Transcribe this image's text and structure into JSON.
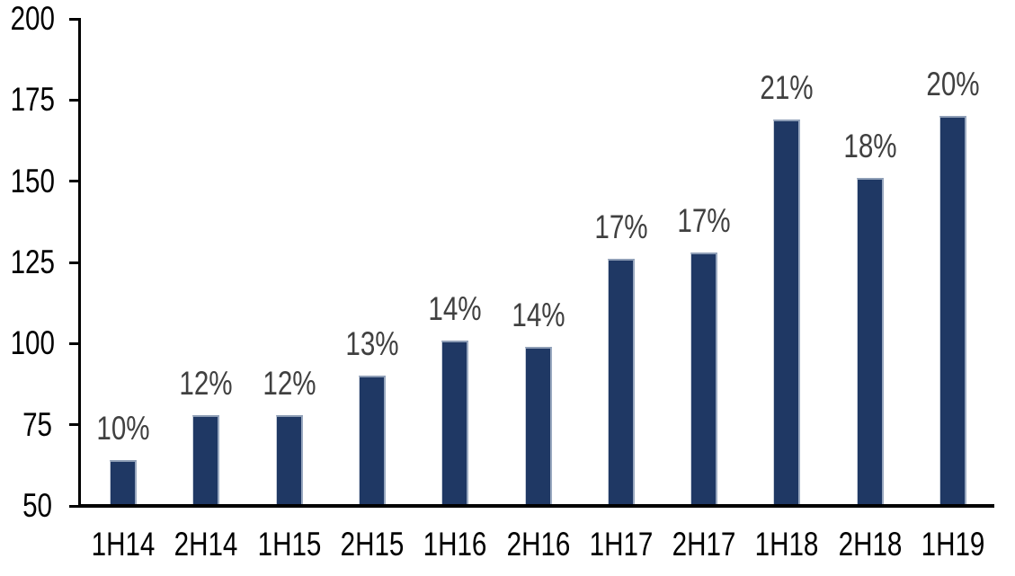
{
  "chart_data": {
    "type": "bar",
    "title": "",
    "xlabel": "",
    "ylabel": "",
    "categories": [
      "1H14",
      "2H14",
      "1H15",
      "2H15",
      "1H16",
      "2H16",
      "1H17",
      "2H17",
      "1H18",
      "2H18",
      "1H19"
    ],
    "values": [
      64,
      78,
      78,
      90,
      101,
      99,
      126,
      128,
      169,
      151,
      170
    ],
    "bar_labels": [
      "10%",
      "12%",
      "12%",
      "13%",
      "14%",
      "14%",
      "17%",
      "17%",
      "21%",
      "18%",
      "20%"
    ],
    "ylim": [
      50,
      200
    ],
    "y_ticks": [
      50,
      75,
      100,
      125,
      150,
      175,
      200
    ],
    "grid": false,
    "legend": false,
    "colors": {
      "bar_fill": "#1F3864",
      "bar_edge": "#9AA9C0",
      "bar_label_text": "#404040",
      "axis_text": "#000000",
      "axis_line": "#000000",
      "background": "#FFFFFF"
    }
  }
}
